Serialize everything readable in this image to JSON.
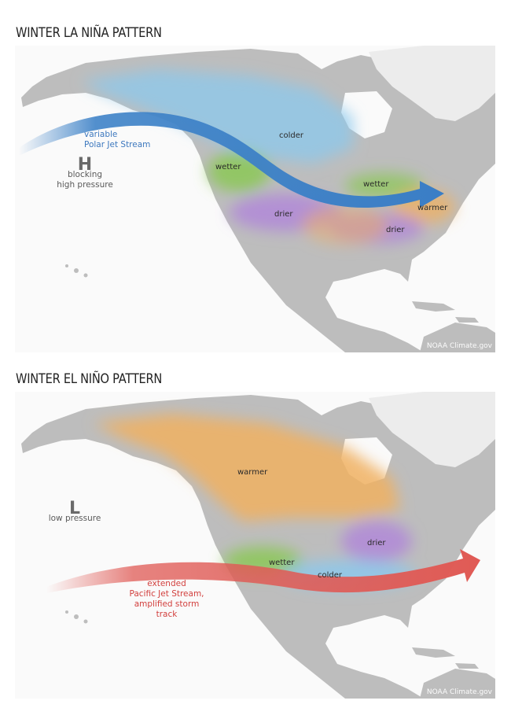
{
  "panels": [
    {
      "title": "WINTER LA NIÑA PATTERN",
      "pressure_symbol": "H",
      "pressure_label_1": "blocking",
      "pressure_label_2": "high pressure",
      "jet_label_1": "variable",
      "jet_label_2": "Polar Jet Stream",
      "jet_color": "#3f83c8",
      "regions": {
        "colder": "colder",
        "wetter_west": "wetter",
        "wetter_east": "wetter",
        "warmer": "warmer",
        "drier_sw": "drier",
        "drier_se": "drier"
      },
      "credit": "NOAA Climate.gov"
    },
    {
      "title": "WINTER EL NIÑO PATTERN",
      "pressure_symbol": "L",
      "pressure_label_1": "low pressure",
      "jet_label_1": "extended",
      "jet_label_2": "Pacific Jet Stream,",
      "jet_label_3": "amplified storm",
      "jet_label_4": "track",
      "jet_color": "#e05a55",
      "regions": {
        "warmer": "warmer",
        "drier": "drier",
        "wetter": "wetter",
        "colder": "colder"
      },
      "credit": "NOAA Climate.gov"
    }
  ],
  "colors": {
    "colder": "#8cc8ec",
    "wetter": "#88c850",
    "drier": "#b088d8",
    "warmer": "#f0b060",
    "land": "#b8b8b8",
    "ocean": "#fafafa"
  }
}
